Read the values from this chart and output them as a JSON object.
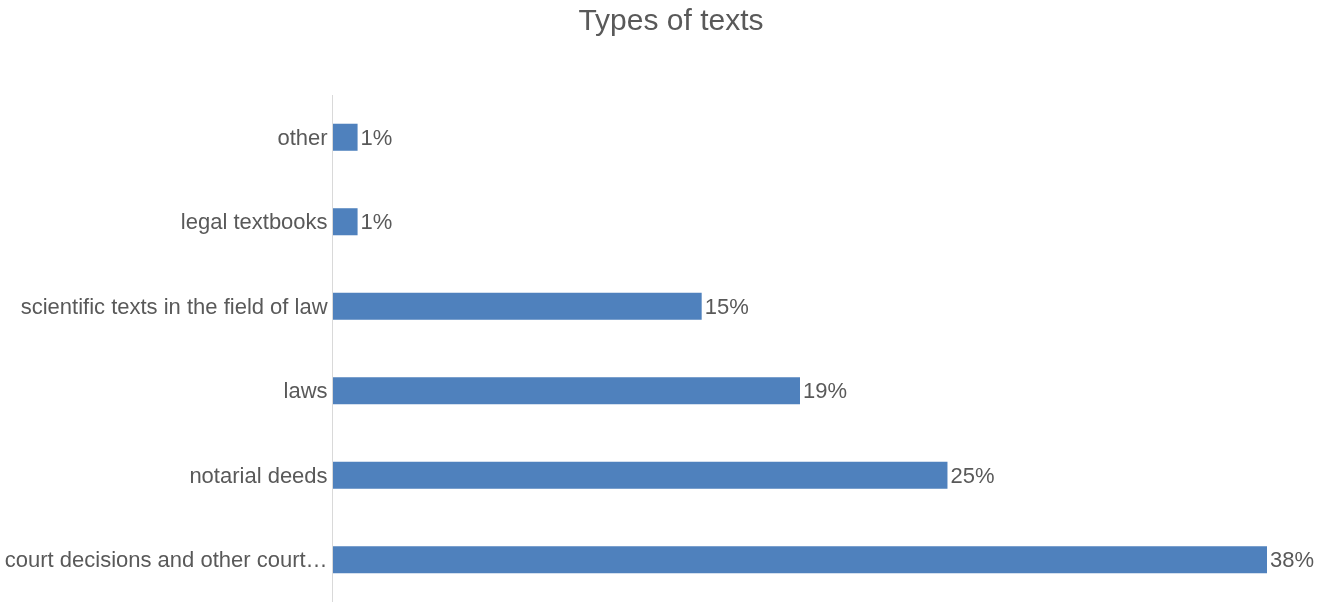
{
  "chart_data": {
    "type": "bar",
    "orientation": "horizontal",
    "title": "Types of texts",
    "categories": [
      "other",
      "legal textbooks",
      "scientific texts in the field of law",
      "laws",
      "notarial deeds",
      "court decisions and other court…"
    ],
    "values": [
      1,
      1,
      15,
      19,
      25,
      38
    ],
    "value_labels": [
      "1%",
      "1%",
      "15%",
      "19%",
      "25%",
      "38%"
    ],
    "color": "#4f81bd"
  }
}
